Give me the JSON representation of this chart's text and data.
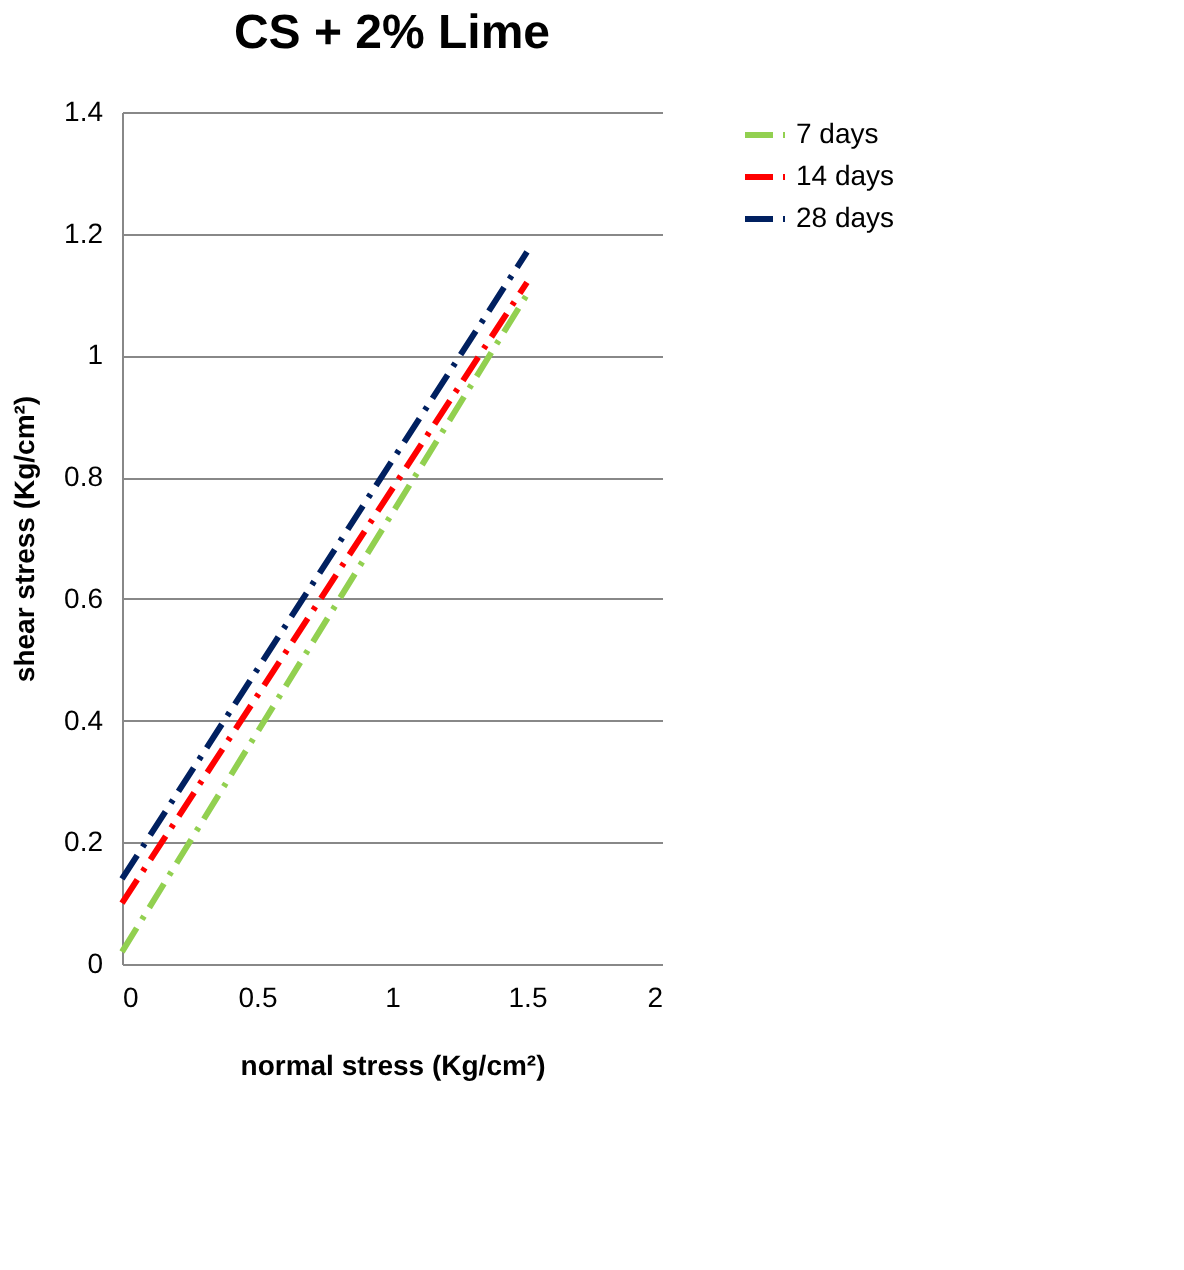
{
  "chart_data": {
    "type": "line",
    "title": "CS + 2% Lime",
    "xlabel": "normal stress (Kg/cm²)",
    "ylabel": "shear stress (Kg/cm²)",
    "x": [
      0,
      1.5
    ],
    "series": [
      {
        "name": "7 days",
        "color": "#92d050",
        "values": [
          0.02,
          1.1
        ]
      },
      {
        "name": "14 days",
        "color": "#ff0000",
        "values": [
          0.1,
          1.12
        ]
      },
      {
        "name": "28 days",
        "color": "#002060",
        "values": [
          0.14,
          1.17
        ]
      }
    ],
    "xlim": [
      0,
      2
    ],
    "xticks": [
      0,
      0.5,
      1,
      1.5,
      2
    ],
    "ylim": [
      0,
      1.4
    ],
    "yticks": [
      0,
      0.2,
      0.4,
      0.6,
      0.8,
      1,
      1.2,
      1.4
    ],
    "grid": "y",
    "legend": "right",
    "line_style": "dashed",
    "marker": "none"
  }
}
